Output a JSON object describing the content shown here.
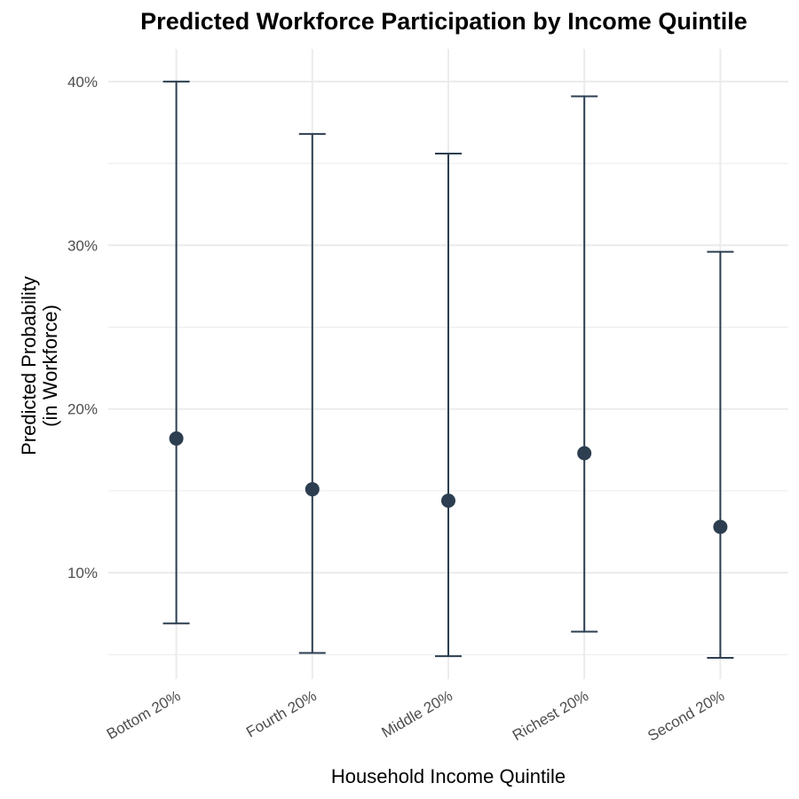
{
  "chart_data": {
    "type": "scatter",
    "title": "Predicted Workforce Participation by Income Quintile",
    "xlabel": "Household Income Quintile",
    "ylabel_lines": [
      "Predicted Probability",
      "(in Workforce)"
    ],
    "categories": [
      "Bottom 20%",
      "Fourth 20%",
      "Middle 20%",
      "Richest 20%",
      "Second 20%"
    ],
    "values": [
      0.182,
      0.151,
      0.144,
      0.173,
      0.128
    ],
    "lower": [
      0.069,
      0.051,
      0.049,
      0.064,
      0.048
    ],
    "upper": [
      0.4,
      0.368,
      0.356,
      0.391,
      0.296
    ],
    "ylim": [
      0.035,
      0.42
    ],
    "yticks": [
      0.1,
      0.2,
      0.3,
      0.4
    ],
    "ytick_labels": [
      "10%",
      "20%",
      "30%",
      "40%"
    ],
    "grid": true,
    "color": "#2c3e50"
  }
}
